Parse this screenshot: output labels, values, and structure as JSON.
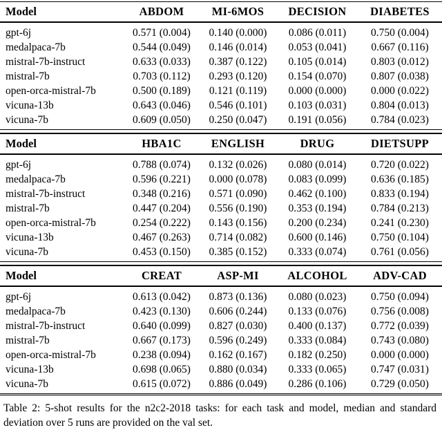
{
  "colors": {
    "background": "#ffffff",
    "text": "#000000",
    "rule": "#000000"
  },
  "caption": "Table 2: 5-shot results for the n2c2-2018 tasks: for each task and model, median and standard deviation over 5 runs are provided on the val set.",
  "table": {
    "sections": [
      {
        "columns": [
          "Model",
          "ABDOM",
          "MI-6MOS",
          "DECISION",
          "DIABETES"
        ],
        "rows": [
          {
            "model": "gpt-6j",
            "values": [
              "0.571 (0.004)",
              "0.140 (0.000)",
              "0.086 (0.011)",
              "0.750 (0.004)"
            ]
          },
          {
            "model": "medalpaca-7b",
            "values": [
              "0.544 (0.049)",
              "0.146 (0.014)",
              "0.053 (0.041)",
              "0.667 (0.116)"
            ]
          },
          {
            "model": "mistral-7b-instruct",
            "values": [
              "0.633 (0.033)",
              "0.387 (0.122)",
              "0.105 (0.014)",
              "0.803 (0.012)"
            ]
          },
          {
            "model": "mistral-7b",
            "values": [
              "0.703 (0.112)",
              "0.293 (0.120)",
              "0.154 (0.070)",
              "0.807 (0.038)"
            ]
          },
          {
            "model": "open-orca-mistral-7b",
            "values": [
              "0.500 (0.189)",
              "0.121 (0.119)",
              "0.000 (0.000)",
              "0.000 (0.022)"
            ]
          },
          {
            "model": "vicuna-13b",
            "values": [
              "0.643 (0.046)",
              "0.546 (0.101)",
              "0.103 (0.031)",
              "0.804 (0.013)"
            ]
          },
          {
            "model": "vicuna-7b",
            "values": [
              "0.609 (0.050)",
              "0.250 (0.047)",
              "0.191 (0.056)",
              "0.784 (0.023)"
            ]
          }
        ]
      },
      {
        "columns": [
          "Model",
          "HBA1C",
          "ENGLISH",
          "DRUG",
          "DIETSUPP"
        ],
        "rows": [
          {
            "model": "gpt-6j",
            "values": [
              "0.788 (0.074)",
              "0.132 (0.026)",
              "0.080 (0.014)",
              "0.720 (0.022)"
            ]
          },
          {
            "model": "medalpaca-7b",
            "values": [
              "0.596 (0.221)",
              "0.000 (0.078)",
              "0.083 (0.099)",
              "0.636 (0.185)"
            ]
          },
          {
            "model": "mistral-7b-instruct",
            "values": [
              "0.348 (0.216)",
              "0.571 (0.090)",
              "0.462 (0.100)",
              "0.833 (0.194)"
            ]
          },
          {
            "model": "mistral-7b",
            "values": [
              "0.447 (0.204)",
              "0.556 (0.190)",
              "0.353 (0.194)",
              "0.784 (0.213)"
            ]
          },
          {
            "model": "open-orca-mistral-7b",
            "values": [
              "0.254 (0.222)",
              "0.143 (0.156)",
              "0.200 (0.234)",
              "0.241 (0.230)"
            ]
          },
          {
            "model": "vicuna-13b",
            "values": [
              "0.467 (0.263)",
              "0.714 (0.082)",
              "0.600 (0.146)",
              "0.750 (0.104)"
            ]
          },
          {
            "model": "vicuna-7b",
            "values": [
              "0.453 (0.150)",
              "0.385 (0.152)",
              "0.333 (0.074)",
              "0.761 (0.056)"
            ]
          }
        ]
      },
      {
        "columns": [
          "Model",
          "CREAT",
          "ASP-MI",
          "ALCOHOL",
          "ADV-CAD"
        ],
        "rows": [
          {
            "model": "gpt-6j",
            "values": [
              "0.613 (0.042)",
              "0.873 (0.136)",
              "0.080 (0.023)",
              "0.750 (0.094)"
            ]
          },
          {
            "model": "medalpaca-7b",
            "values": [
              "0.423 (0.130)",
              "0.606 (0.244)",
              "0.133 (0.076)",
              "0.756 (0.008)"
            ]
          },
          {
            "model": "mistral-7b-instruct",
            "values": [
              "0.640 (0.099)",
              "0.827 (0.030)",
              "0.400 (0.137)",
              "0.772 (0.039)"
            ]
          },
          {
            "model": "mistral-7b",
            "values": [
              "0.667 (0.173)",
              "0.596 (0.249)",
              "0.333 (0.084)",
              "0.743 (0.080)"
            ]
          },
          {
            "model": "open-orca-mistral-7b",
            "values": [
              "0.238 (0.094)",
              "0.162 (0.167)",
              "0.182 (0.250)",
              "0.000 (0.000)"
            ]
          },
          {
            "model": "vicuna-13b",
            "values": [
              "0.698 (0.065)",
              "0.880 (0.034)",
              "0.333 (0.065)",
              "0.747 (0.031)"
            ]
          },
          {
            "model": "vicuna-7b",
            "values": [
              "0.615 (0.072)",
              "0.886 (0.049)",
              "0.286 (0.106)",
              "0.729 (0.050)"
            ]
          }
        ]
      }
    ]
  }
}
